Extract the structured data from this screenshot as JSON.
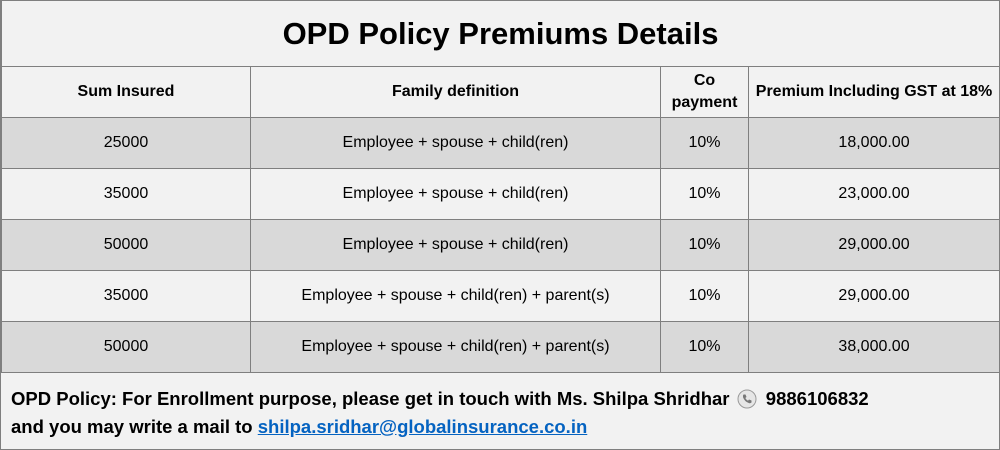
{
  "title": "OPD Policy Premiums Details",
  "table": {
    "headers": [
      "Sum Insured",
      "Family definition",
      "Co payment",
      "Premium Including GST at 18%"
    ],
    "rows": [
      [
        "25000",
        "Employee + spouse + child(ren)",
        "10%",
        "18,000.00"
      ],
      [
        "35000",
        "Employee + spouse + child(ren)",
        "10%",
        "23,000.00"
      ],
      [
        "50000",
        "Employee + spouse + child(ren)",
        "10%",
        "29,000.00"
      ],
      [
        "35000",
        "Employee + spouse + child(ren) + parent(s)",
        "10%",
        "29,000.00"
      ],
      [
        "50000",
        "Employee + spouse + child(ren) + parent(s)",
        "10%",
        "38,000.00"
      ]
    ]
  },
  "footer": {
    "line1": "OPD Policy: For Enrollment purpose, please get in touch with Ms. Shilpa Shridhar",
    "phone": "9886106832",
    "line2": "and you may write a mail to",
    "email": "shilpa.sridhar@globalinsurance.co.in"
  }
}
